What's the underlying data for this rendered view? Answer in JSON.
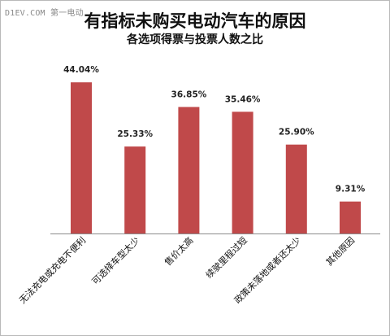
{
  "watermark": "D1EV.COM 第一电动",
  "chart_data": {
    "type": "bar",
    "title": "有指标未购买电动汽车的原因",
    "subtitle": "各选项得票与投票人数之比",
    "categories": [
      "无法充电或充电不便利",
      "可选择车型太少",
      "售价太高",
      "续驶里程过短",
      "政策未落地或者还太少",
      "其他原因"
    ],
    "values": [
      44.04,
      25.33,
      36.85,
      35.46,
      25.9,
      9.31
    ],
    "value_labels": [
      "44.04%",
      "25.33%",
      "36.85%",
      "35.46%",
      "25.90%",
      "9.31%"
    ],
    "ylim": [
      0,
      50
    ],
    "grid": false,
    "legend": "none",
    "bar_color": "#c0494a"
  }
}
